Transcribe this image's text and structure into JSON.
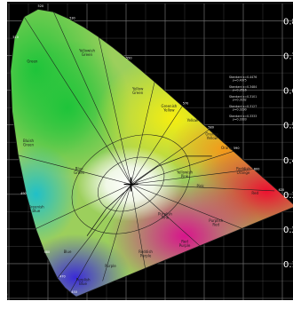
{
  "chart_data": {
    "type": "diagram",
    "subject": "CIE 1931 chromaticity diagram",
    "x_ticks": [
      "0.0",
      "0.1",
      "0.2",
      "0.3",
      "0.4",
      "0.5",
      "0.6",
      "0.7"
    ],
    "y_ticks": [
      "0.8",
      "0.7",
      "0.6",
      "0.5",
      "0.4",
      "0.3",
      "0.2",
      "0.1",
      "0.0"
    ],
    "bottom_left_label": "0",
    "region_labels": [
      {
        "text": "Green",
        "x": 0.06,
        "y": 0.68
      },
      {
        "text": "Yellowish Green",
        "x": 0.2,
        "y": 0.71
      },
      {
        "text": "Yellow Green",
        "x": 0.33,
        "y": 0.6
      },
      {
        "text": "Yellow",
        "x": 0.47,
        "y": 0.51
      },
      {
        "text": "Greenish Yellow",
        "x": 0.41,
        "y": 0.55
      },
      {
        "text": "Orange Yellow",
        "x": 0.52,
        "y": 0.47
      },
      {
        "text": "Orange",
        "x": 0.56,
        "y": 0.43
      },
      {
        "text": "Bluish Green",
        "x": 0.05,
        "y": 0.45
      },
      {
        "text": "Yellowish Pink",
        "x": 0.45,
        "y": 0.36
      },
      {
        "text": "Reddish Orange",
        "x": 0.6,
        "y": 0.37
      },
      {
        "text": "Red",
        "x": 0.63,
        "y": 0.3
      },
      {
        "text": "Greenish Blue",
        "x": 0.07,
        "y": 0.26
      },
      {
        "text": "Pink",
        "x": 0.49,
        "y": 0.32
      },
      {
        "text": "Purplish Pink",
        "x": 0.4,
        "y": 0.24
      },
      {
        "text": "Purplish Red",
        "x": 0.53,
        "y": 0.22
      },
      {
        "text": "Red Purple",
        "x": 0.45,
        "y": 0.16
      },
      {
        "text": "Reddish Purple",
        "x": 0.35,
        "y": 0.13
      },
      {
        "text": "Blue",
        "x": 0.15,
        "y": 0.13
      },
      {
        "text": "Purple",
        "x": 0.26,
        "y": 0.09
      },
      {
        "text": "Purplish Blue",
        "x": 0.19,
        "y": 0.05
      },
      {
        "text": "Blue Green",
        "x": 0.18,
        "y": 0.37
      }
    ],
    "wavelength_labels": [
      {
        "text": "520",
        "x": 0.074,
        "y": 0.84
      },
      {
        "text": "510",
        "x": 0.01,
        "y": 0.75
      },
      {
        "text": "530",
        "x": 0.155,
        "y": 0.805
      },
      {
        "text": "550",
        "x": 0.3,
        "y": 0.69
      },
      {
        "text": "570",
        "x": 0.445,
        "y": 0.56
      },
      {
        "text": "580",
        "x": 0.51,
        "y": 0.49
      },
      {
        "text": "590",
        "x": 0.575,
        "y": 0.43
      },
      {
        "text": "600",
        "x": 0.627,
        "y": 0.37
      },
      {
        "text": "620",
        "x": 0.69,
        "y": 0.31
      },
      {
        "text": "700",
        "x": 0.735,
        "y": 0.265
      },
      {
        "text": "490",
        "x": 0.03,
        "y": 0.3
      },
      {
        "text": "480",
        "x": 0.09,
        "y": 0.13
      },
      {
        "text": "470",
        "x": 0.13,
        "y": 0.06
      },
      {
        "text": "450",
        "x": 0.16,
        "y": 0.015
      }
    ],
    "side_notes": [
      "Standard x=0.4476 y=0.4075",
      "Standard x=0.3484 y=0.3516",
      "Standard x=0.3101 y=0.3162",
      "Standard x=0.3127 y=0.3290",
      "Standard x=0.3333 y=0.3333"
    ]
  },
  "colors": {
    "background": "#000000",
    "grid": "#6e6e6e",
    "label_text": "#ffffff",
    "region_text": "#1a1a1a"
  }
}
